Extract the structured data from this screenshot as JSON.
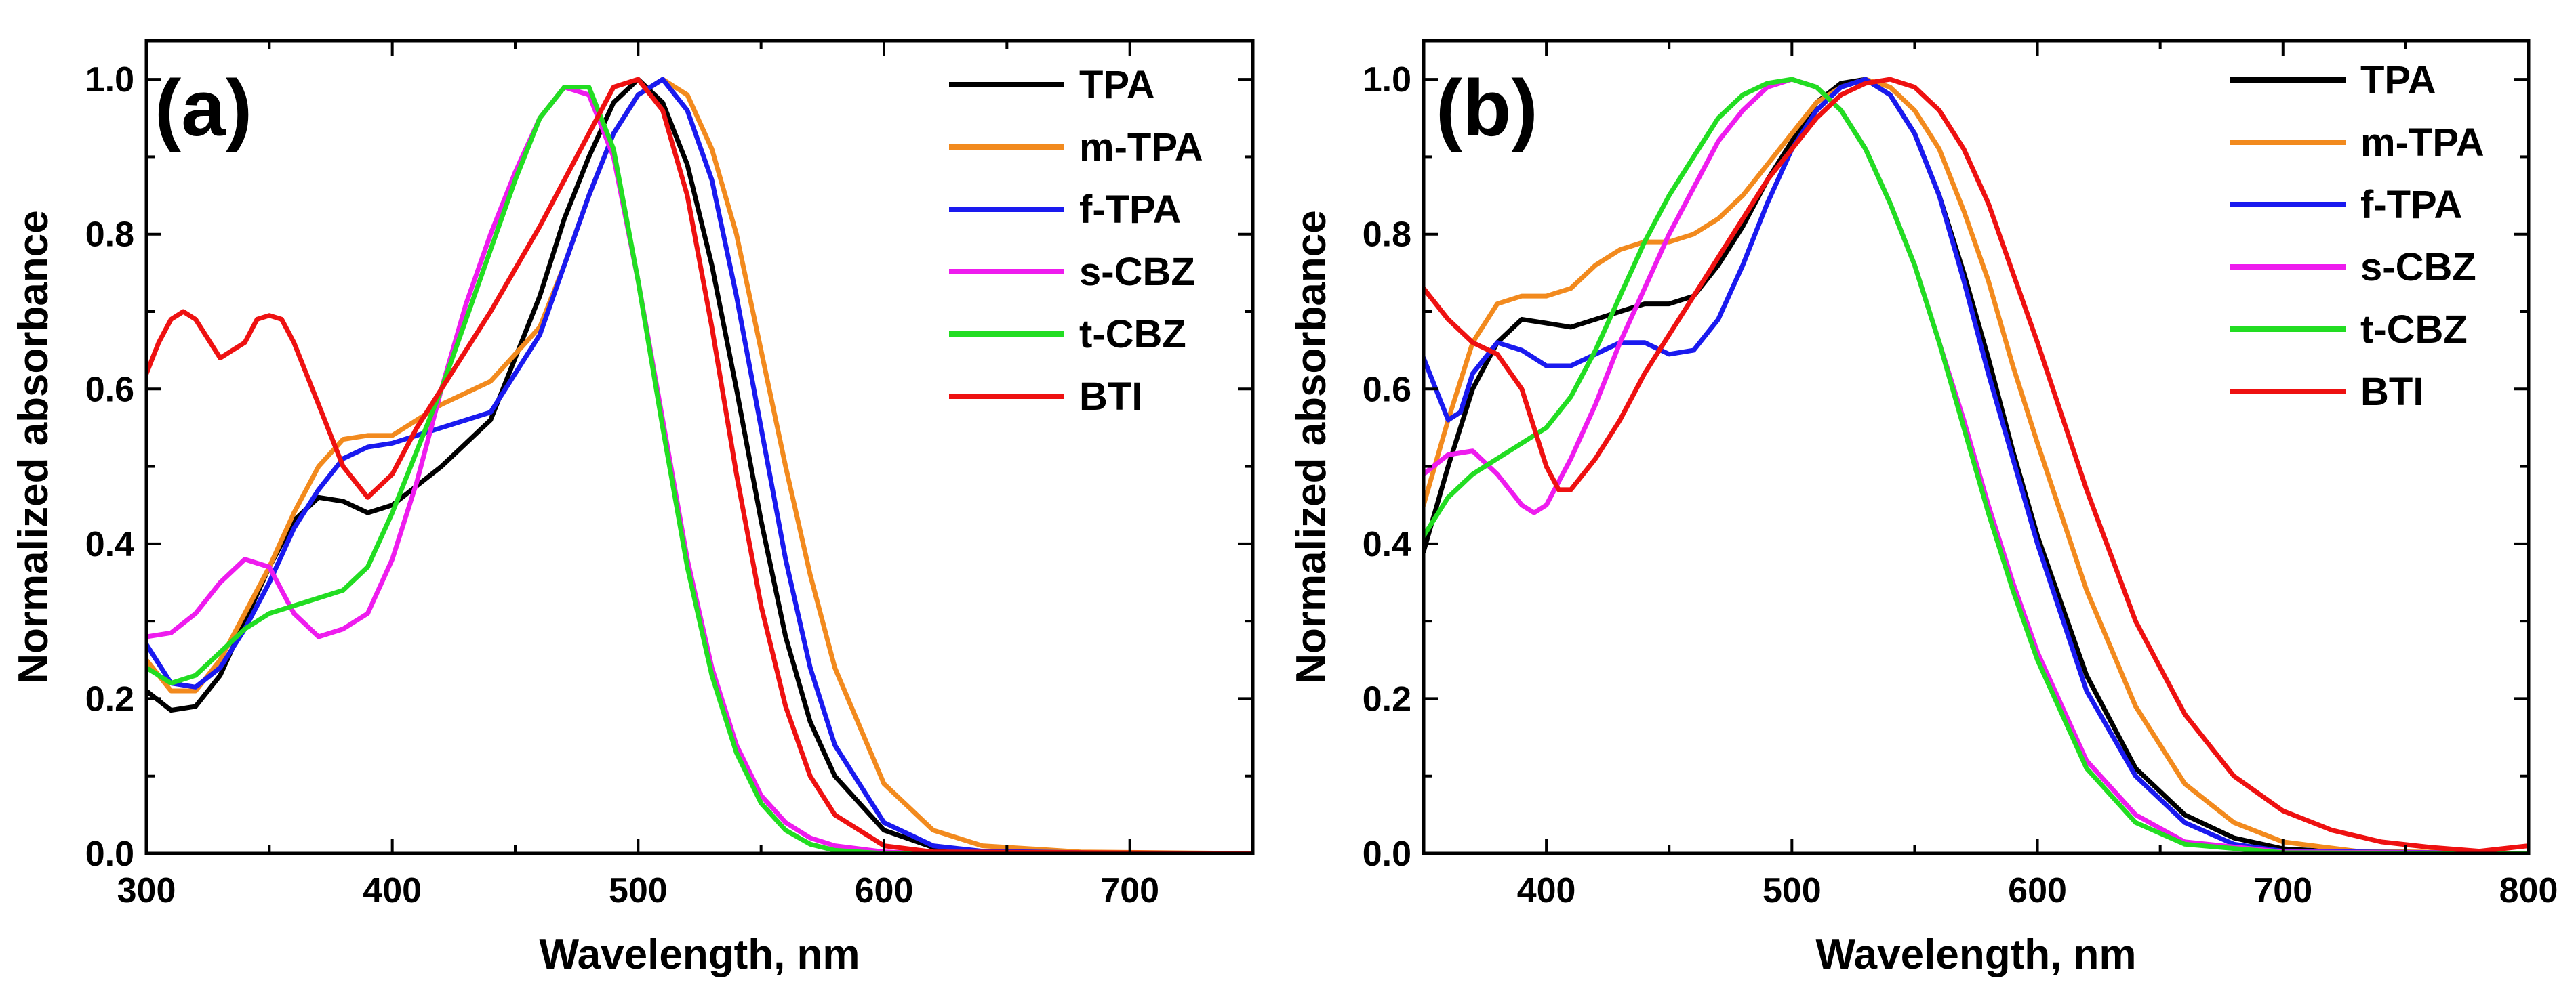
{
  "chart_data": [
    {
      "type": "line",
      "panel_label": "(a)",
      "xlabel": "Wavelength, nm",
      "ylabel": "Normalized absorbance",
      "xlim": [
        300,
        750
      ],
      "ylim": [
        0,
        1.05
      ],
      "xticks": [
        300,
        400,
        500,
        600,
        700
      ],
      "yticks": [
        0.0,
        0.2,
        0.4,
        0.6,
        0.8,
        1.0
      ],
      "tick_labels_x": [
        "300",
        "400",
        "500",
        "600",
        "700"
      ],
      "tick_labels_y": [
        "0.0",
        "0.2",
        "0.4",
        "0.6",
        "0.8",
        "1.0"
      ],
      "legend_position": "top-right",
      "series": [
        {
          "name": "TPA",
          "color": "#000000",
          "x": [
            300,
            310,
            320,
            330,
            340,
            350,
            360,
            370,
            380,
            390,
            400,
            420,
            440,
            460,
            470,
            480,
            490,
            500,
            510,
            520,
            530,
            540,
            550,
            560,
            570,
            580,
            600,
            620,
            640,
            700,
            750
          ],
          "y": [
            0.21,
            0.185,
            0.19,
            0.23,
            0.3,
            0.37,
            0.43,
            0.46,
            0.455,
            0.44,
            0.45,
            0.5,
            0.56,
            0.72,
            0.82,
            0.9,
            0.97,
            1.0,
            0.97,
            0.89,
            0.76,
            0.6,
            0.43,
            0.28,
            0.17,
            0.1,
            0.03,
            0.008,
            0.002,
            0.0,
            0.0
          ]
        },
        {
          "name": "m-TPA",
          "color": "#f28a1e",
          "x": [
            300,
            310,
            320,
            330,
            340,
            350,
            360,
            370,
            380,
            390,
            400,
            420,
            440,
            460,
            470,
            480,
            490,
            500,
            510,
            520,
            530,
            540,
            550,
            560,
            570,
            580,
            600,
            620,
            640,
            680,
            750
          ],
          "y": [
            0.25,
            0.21,
            0.21,
            0.25,
            0.31,
            0.37,
            0.44,
            0.5,
            0.535,
            0.54,
            0.54,
            0.58,
            0.61,
            0.68,
            0.76,
            0.85,
            0.93,
            0.98,
            1.0,
            0.98,
            0.91,
            0.8,
            0.65,
            0.5,
            0.36,
            0.24,
            0.09,
            0.03,
            0.01,
            0.002,
            0.0
          ]
        },
        {
          "name": "f-TPA",
          "color": "#1a1aef",
          "x": [
            300,
            310,
            320,
            330,
            340,
            350,
            360,
            370,
            380,
            390,
            400,
            420,
            440,
            460,
            470,
            480,
            490,
            500,
            510,
            520,
            530,
            540,
            550,
            560,
            570,
            580,
            600,
            620,
            640,
            700,
            750
          ],
          "y": [
            0.27,
            0.22,
            0.215,
            0.24,
            0.29,
            0.35,
            0.42,
            0.47,
            0.51,
            0.525,
            0.53,
            0.55,
            0.57,
            0.67,
            0.76,
            0.85,
            0.93,
            0.98,
            1.0,
            0.96,
            0.87,
            0.72,
            0.55,
            0.38,
            0.24,
            0.14,
            0.04,
            0.01,
            0.003,
            0.0,
            0.0
          ]
        },
        {
          "name": "s-CBZ",
          "color": "#ee1cee",
          "x": [
            300,
            310,
            320,
            330,
            340,
            350,
            360,
            370,
            380,
            390,
            400,
            410,
            420,
            430,
            440,
            450,
            460,
            470,
            480,
            490,
            500,
            510,
            520,
            530,
            540,
            550,
            560,
            570,
            580,
            600,
            620,
            750
          ],
          "y": [
            0.28,
            0.285,
            0.31,
            0.35,
            0.38,
            0.37,
            0.31,
            0.28,
            0.29,
            0.31,
            0.38,
            0.48,
            0.6,
            0.71,
            0.8,
            0.88,
            0.95,
            0.99,
            0.98,
            0.9,
            0.74,
            0.56,
            0.38,
            0.24,
            0.14,
            0.075,
            0.04,
            0.02,
            0.01,
            0.002,
            0.0,
            0.0
          ]
        },
        {
          "name": "t-CBZ",
          "color": "#22dd22",
          "x": [
            300,
            310,
            320,
            330,
            340,
            350,
            360,
            370,
            380,
            390,
            400,
            410,
            420,
            430,
            440,
            450,
            460,
            470,
            480,
            490,
            500,
            510,
            520,
            530,
            540,
            550,
            560,
            570,
            580,
            600,
            750
          ],
          "y": [
            0.24,
            0.22,
            0.23,
            0.26,
            0.29,
            0.31,
            0.32,
            0.33,
            0.34,
            0.37,
            0.44,
            0.52,
            0.6,
            0.69,
            0.78,
            0.87,
            0.95,
            0.99,
            0.99,
            0.91,
            0.74,
            0.55,
            0.37,
            0.23,
            0.13,
            0.065,
            0.03,
            0.012,
            0.004,
            0.0,
            0.0
          ]
        },
        {
          "name": "BTI",
          "color": "#ee1111",
          "x": [
            300,
            305,
            310,
            315,
            320,
            330,
            340,
            345,
            350,
            355,
            360,
            370,
            380,
            390,
            400,
            410,
            420,
            440,
            460,
            480,
            490,
            500,
            510,
            520,
            530,
            540,
            550,
            560,
            570,
            580,
            600,
            620,
            750
          ],
          "y": [
            0.62,
            0.66,
            0.69,
            0.7,
            0.69,
            0.64,
            0.66,
            0.69,
            0.695,
            0.69,
            0.66,
            0.58,
            0.5,
            0.46,
            0.49,
            0.55,
            0.6,
            0.7,
            0.81,
            0.93,
            0.99,
            1.0,
            0.96,
            0.85,
            0.68,
            0.49,
            0.32,
            0.19,
            0.1,
            0.05,
            0.01,
            0.002,
            0.0
          ]
        }
      ]
    },
    {
      "type": "line",
      "panel_label": "(b)",
      "xlabel": "Wavelength, nm",
      "ylabel": "Normalized absorbance",
      "xlim": [
        350,
        800
      ],
      "ylim": [
        0,
        1.05
      ],
      "xticks": [
        400,
        500,
        600,
        700,
        800
      ],
      "yticks": [
        0.0,
        0.2,
        0.4,
        0.6,
        0.8,
        1.0
      ],
      "tick_labels_x": [
        "400",
        "500",
        "600",
        "700",
        "800"
      ],
      "tick_labels_y": [
        "0.0",
        "0.2",
        "0.4",
        "0.6",
        "0.8",
        "1.0"
      ],
      "legend_position": "top-right",
      "series": [
        {
          "name": "TPA",
          "color": "#000000",
          "x": [
            350,
            360,
            370,
            380,
            390,
            400,
            410,
            420,
            430,
            440,
            450,
            460,
            470,
            480,
            490,
            500,
            510,
            520,
            530,
            540,
            550,
            560,
            570,
            580,
            590,
            600,
            620,
            640,
            660,
            680,
            700,
            730,
            800
          ],
          "y": [
            0.39,
            0.5,
            0.6,
            0.66,
            0.69,
            0.685,
            0.68,
            0.69,
            0.7,
            0.71,
            0.71,
            0.72,
            0.76,
            0.81,
            0.87,
            0.92,
            0.97,
            0.995,
            1.0,
            0.98,
            0.93,
            0.85,
            0.75,
            0.64,
            0.52,
            0.41,
            0.23,
            0.11,
            0.05,
            0.02,
            0.006,
            0.001,
            0.0
          ]
        },
        {
          "name": "m-TPA",
          "color": "#f28a1e",
          "x": [
            350,
            360,
            370,
            380,
            390,
            400,
            410,
            420,
            430,
            440,
            450,
            460,
            470,
            480,
            490,
            500,
            510,
            520,
            530,
            540,
            550,
            560,
            570,
            580,
            590,
            600,
            620,
            640,
            660,
            680,
            700,
            730,
            800
          ],
          "y": [
            0.45,
            0.56,
            0.66,
            0.71,
            0.72,
            0.72,
            0.73,
            0.76,
            0.78,
            0.79,
            0.79,
            0.8,
            0.82,
            0.85,
            0.89,
            0.93,
            0.97,
            0.99,
            1.0,
            0.99,
            0.96,
            0.91,
            0.83,
            0.74,
            0.63,
            0.53,
            0.34,
            0.19,
            0.09,
            0.04,
            0.015,
            0.003,
            0.0
          ]
        },
        {
          "name": "f-TPA",
          "color": "#1a1aef",
          "x": [
            350,
            355,
            360,
            365,
            370,
            380,
            390,
            400,
            410,
            420,
            430,
            440,
            450,
            460,
            470,
            480,
            490,
            500,
            510,
            520,
            530,
            540,
            550,
            560,
            570,
            580,
            600,
            620,
            640,
            660,
            680,
            700,
            800
          ],
          "y": [
            0.64,
            0.6,
            0.56,
            0.57,
            0.62,
            0.66,
            0.65,
            0.63,
            0.63,
            0.645,
            0.66,
            0.66,
            0.645,
            0.65,
            0.69,
            0.76,
            0.84,
            0.91,
            0.96,
            0.99,
            1.0,
            0.98,
            0.93,
            0.85,
            0.74,
            0.62,
            0.4,
            0.21,
            0.1,
            0.04,
            0.012,
            0.003,
            0.0
          ]
        },
        {
          "name": "s-CBZ",
          "color": "#ee1cee",
          "x": [
            350,
            360,
            370,
            380,
            390,
            395,
            400,
            410,
            420,
            430,
            440,
            450,
            460,
            470,
            480,
            490,
            500,
            510,
            520,
            530,
            540,
            550,
            560,
            570,
            580,
            590,
            600,
            620,
            640,
            660,
            700,
            800
          ],
          "y": [
            0.49,
            0.515,
            0.52,
            0.49,
            0.45,
            0.44,
            0.45,
            0.51,
            0.58,
            0.66,
            0.73,
            0.8,
            0.86,
            0.92,
            0.96,
            0.99,
            1.0,
            0.99,
            0.96,
            0.91,
            0.84,
            0.76,
            0.66,
            0.56,
            0.45,
            0.35,
            0.26,
            0.12,
            0.05,
            0.015,
            0.002,
            0.0
          ]
        },
        {
          "name": "t-CBZ",
          "color": "#22dd22",
          "x": [
            350,
            360,
            370,
            380,
            390,
            400,
            410,
            420,
            430,
            440,
            450,
            460,
            470,
            480,
            490,
            500,
            510,
            520,
            530,
            540,
            550,
            560,
            570,
            580,
            590,
            600,
            620,
            640,
            660,
            700,
            800
          ],
          "y": [
            0.41,
            0.46,
            0.49,
            0.51,
            0.53,
            0.55,
            0.59,
            0.65,
            0.72,
            0.79,
            0.85,
            0.9,
            0.95,
            0.98,
            0.995,
            1.0,
            0.99,
            0.96,
            0.91,
            0.84,
            0.76,
            0.66,
            0.55,
            0.44,
            0.34,
            0.25,
            0.11,
            0.04,
            0.012,
            0.001,
            0.0
          ]
        },
        {
          "name": "BTI",
          "color": "#ee1111",
          "x": [
            350,
            360,
            370,
            380,
            390,
            400,
            405,
            410,
            420,
            430,
            440,
            450,
            460,
            470,
            480,
            490,
            500,
            510,
            520,
            530,
            540,
            550,
            560,
            570,
            580,
            590,
            600,
            620,
            640,
            660,
            680,
            700,
            720,
            740,
            760,
            780,
            800
          ],
          "y": [
            0.73,
            0.69,
            0.66,
            0.645,
            0.6,
            0.5,
            0.47,
            0.47,
            0.51,
            0.56,
            0.62,
            0.67,
            0.72,
            0.77,
            0.82,
            0.87,
            0.91,
            0.95,
            0.98,
            0.995,
            1.0,
            0.99,
            0.96,
            0.91,
            0.84,
            0.75,
            0.66,
            0.47,
            0.3,
            0.18,
            0.1,
            0.055,
            0.03,
            0.015,
            0.008,
            0.003,
            0.01
          ]
        }
      ]
    }
  ]
}
